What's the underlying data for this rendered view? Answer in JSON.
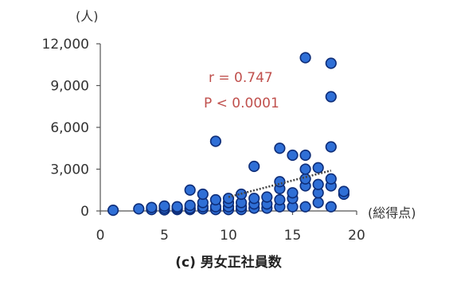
{
  "chart_data": {
    "type": "scatter",
    "caption": "(c) 男女正社員数",
    "y_unit": "(人)",
    "x_unit": "(総得点)",
    "xlim": [
      0,
      20
    ],
    "ylim": [
      0,
      12000
    ],
    "x_ticks": [
      "0",
      "5",
      "10",
      "15",
      "20"
    ],
    "y_ticks": [
      "0",
      "3,000",
      "6,000",
      "9,000",
      "12,000"
    ],
    "x_tick_values": [
      0,
      5,
      10,
      15,
      20
    ],
    "y_tick_values": [
      0,
      3000,
      6000,
      9000,
      12000
    ],
    "annotations": {
      "r": "r = 0.747",
      "p": "P < 0.0001"
    },
    "point_color": "#2f6fd6",
    "trend_color": "#444444",
    "trendline": {
      "x": [
        10,
        18
      ],
      "y": [
        1000,
        2900
      ]
    },
    "points": [
      {
        "x": 1,
        "y": 50
      },
      {
        "x": 3,
        "y": 150
      },
      {
        "x": 4,
        "y": 100
      },
      {
        "x": 4,
        "y": 250
      },
      {
        "x": 5,
        "y": 80
      },
      {
        "x": 5,
        "y": 200
      },
      {
        "x": 5,
        "y": 350
      },
      {
        "x": 6,
        "y": 100
      },
      {
        "x": 6,
        "y": 200
      },
      {
        "x": 6,
        "y": 300
      },
      {
        "x": 7,
        "y": 100
      },
      {
        "x": 7,
        "y": 200
      },
      {
        "x": 7,
        "y": 400
      },
      {
        "x": 7,
        "y": 1500
      },
      {
        "x": 8,
        "y": 150
      },
      {
        "x": 8,
        "y": 300
      },
      {
        "x": 8,
        "y": 600
      },
      {
        "x": 8,
        "y": 1200
      },
      {
        "x": 9,
        "y": 100
      },
      {
        "x": 9,
        "y": 300
      },
      {
        "x": 9,
        "y": 800
      },
      {
        "x": 9,
        "y": 5000
      },
      {
        "x": 10,
        "y": 100
      },
      {
        "x": 10,
        "y": 300
      },
      {
        "x": 10,
        "y": 600
      },
      {
        "x": 10,
        "y": 900
      },
      {
        "x": 11,
        "y": 100
      },
      {
        "x": 11,
        "y": 300
      },
      {
        "x": 11,
        "y": 600
      },
      {
        "x": 11,
        "y": 1200
      },
      {
        "x": 12,
        "y": 200
      },
      {
        "x": 12,
        "y": 500
      },
      {
        "x": 12,
        "y": 900
      },
      {
        "x": 12,
        "y": 3200
      },
      {
        "x": 13,
        "y": 200
      },
      {
        "x": 13,
        "y": 500
      },
      {
        "x": 13,
        "y": 1000
      },
      {
        "x": 14,
        "y": 300
      },
      {
        "x": 14,
        "y": 800
      },
      {
        "x": 14,
        "y": 1600
      },
      {
        "x": 14,
        "y": 2100
      },
      {
        "x": 14,
        "y": 4500
      },
      {
        "x": 15,
        "y": 300
      },
      {
        "x": 15,
        "y": 900
      },
      {
        "x": 15,
        "y": 1300
      },
      {
        "x": 15,
        "y": 4000
      },
      {
        "x": 16,
        "y": 300
      },
      {
        "x": 16,
        "y": 1800
      },
      {
        "x": 16,
        "y": 2300
      },
      {
        "x": 16,
        "y": 3000
      },
      {
        "x": 16,
        "y": 4000
      },
      {
        "x": 16,
        "y": 11000
      },
      {
        "x": 17,
        "y": 600
      },
      {
        "x": 17,
        "y": 1300
      },
      {
        "x": 17,
        "y": 1900
      },
      {
        "x": 17,
        "y": 3100
      },
      {
        "x": 18,
        "y": 300
      },
      {
        "x": 18,
        "y": 1800
      },
      {
        "x": 18,
        "y": 2300
      },
      {
        "x": 18,
        "y": 4600
      },
      {
        "x": 18,
        "y": 8200
      },
      {
        "x": 18,
        "y": 10600
      },
      {
        "x": 19,
        "y": 1200
      },
      {
        "x": 19,
        "y": 1400
      }
    ]
  }
}
